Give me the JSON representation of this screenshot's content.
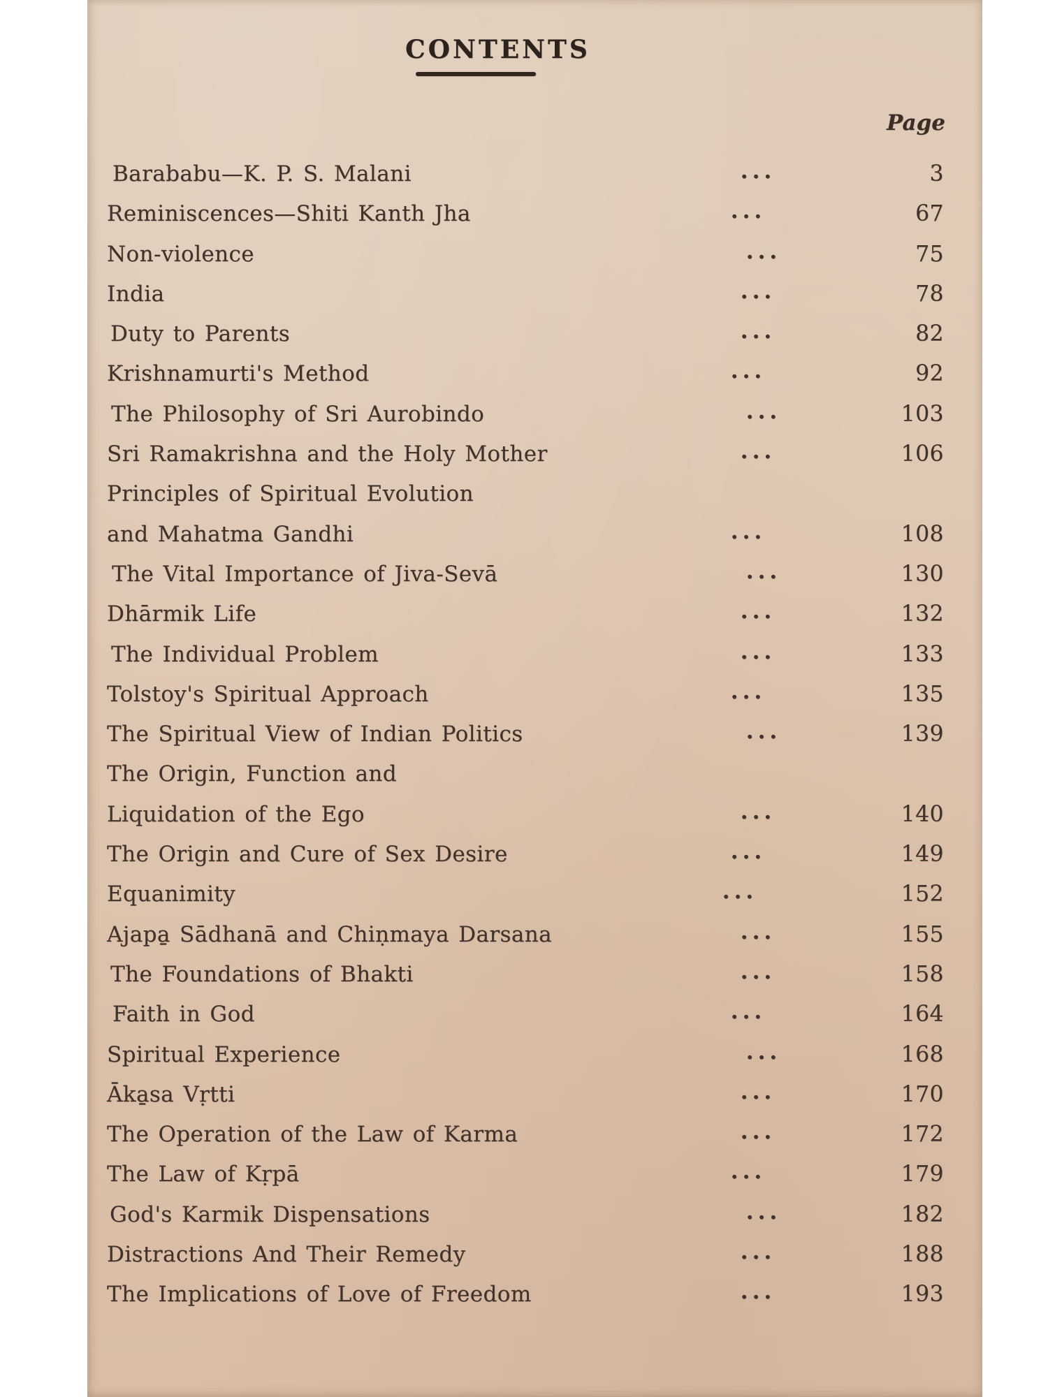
{
  "toc": {
    "title": "CONTENTS",
    "page_header": "Page",
    "entries": [
      {
        "title": "Barababu—K. P. S. Malani",
        "leader": "...",
        "page": "3"
      },
      {
        "title": "Reminiscences—Shiti Kanth Jha",
        "leader": "...",
        "page": "67"
      },
      {
        "title": "Non-violence",
        "leader": "...",
        "page": "75"
      },
      {
        "title": "India",
        "leader": "...",
        "page": "78"
      },
      {
        "title": "Duty to Parents",
        "leader": "...",
        "page": "82"
      },
      {
        "title": "Krishnamurti's Method",
        "leader": "...",
        "page": "92"
      },
      {
        "title": "The Philosophy of Sri  Aurobindo",
        "leader": "...",
        "page": "103"
      },
      {
        "title": "Sri Ramakrishna and the Holy Mother",
        "leader": "...",
        "page": "106"
      },
      {
        "title": "Principles of Spiritual Evolution",
        "leader": "",
        "page": ""
      },
      {
        "title": "and Mahatma Gandhi",
        "leader": "...",
        "page": "108"
      },
      {
        "title": "The Vital Importance of Jiva-Sevā",
        "leader": "...",
        "page": "130"
      },
      {
        "title": "Dhārmik Life",
        "leader": "...",
        "page": "132"
      },
      {
        "title": "The Individual Problem",
        "leader": "...",
        "page": "133"
      },
      {
        "title": "Tolstoy's Spiritual Approach",
        "leader": "...",
        "page": "135"
      },
      {
        "title": "The Spiritual View of Indian  Politics",
        "leader": "...",
        "page": "139"
      },
      {
        "title": "The Origin,  Function and",
        "leader": "",
        "page": ""
      },
      {
        "title": "Liquidation of the Ego",
        "leader": "...",
        "page": "140"
      },
      {
        "title": "The Origin and Cure of Sex Desire",
        "leader": "...",
        "page": "149"
      },
      {
        "title": "Equanimity",
        "leader": "...",
        "page": "152"
      },
      {
        "title": "Ajapa̱ Sādhanā and Chiṇmaya Darsana",
        "leader": "...",
        "page": "155"
      },
      {
        "title": "The Foundations of Bhakti",
        "leader": "...",
        "page": "158"
      },
      {
        "title": "Faith in God",
        "leader": "...",
        "page": "164"
      },
      {
        "title": "Spiritual Experience",
        "leader": "...",
        "page": "168"
      },
      {
        "title": "Āka̱sa Vṛtti",
        "leader": "...",
        "page": "170"
      },
      {
        "title": "The Operation of the Law of Karma",
        "leader": "...",
        "page": "172"
      },
      {
        "title": "The Law of Kṛpā",
        "leader": "...",
        "page": "179"
      },
      {
        "title": "God's Karmik Dispensations",
        "leader": "...",
        "page": "182"
      },
      {
        "title": "Distractions And Their Remedy",
        "leader": "...",
        "page": "188"
      },
      {
        "title": "The Implications of Love of Freedom",
        "leader": "...",
        "page": "193"
      }
    ]
  },
  "colors": {
    "paper": "#dcc3ad",
    "ink": "#42322a",
    "margin": "#ffffff"
  }
}
